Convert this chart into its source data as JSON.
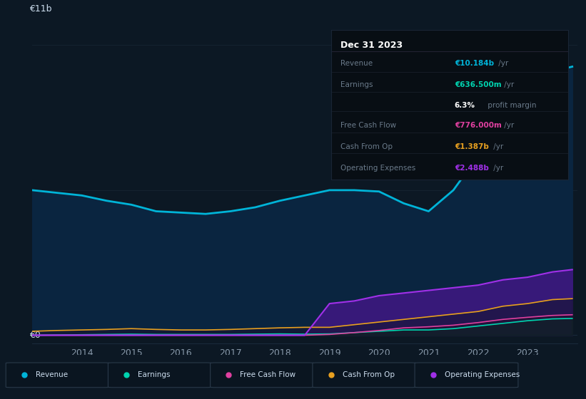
{
  "years": [
    2013.0,
    2013.5,
    2014.0,
    2014.5,
    2015.0,
    2015.5,
    2016.0,
    2016.5,
    2017.0,
    2017.5,
    2018.0,
    2018.5,
    2019.0,
    2019.5,
    2020.0,
    2020.5,
    2021.0,
    2021.5,
    2022.0,
    2022.5,
    2023.0,
    2023.5,
    2023.9
  ],
  "revenue": [
    5.5,
    5.4,
    5.3,
    5.1,
    4.95,
    4.7,
    4.65,
    4.6,
    4.7,
    4.85,
    5.1,
    5.3,
    5.5,
    5.5,
    5.45,
    5.0,
    4.7,
    5.5,
    6.8,
    8.2,
    9.5,
    10.0,
    10.184
  ],
  "earnings": [
    0.0,
    0.01,
    0.02,
    0.03,
    0.04,
    0.03,
    0.03,
    0.03,
    0.03,
    0.04,
    0.05,
    0.04,
    0.05,
    0.1,
    0.15,
    0.2,
    0.2,
    0.25,
    0.35,
    0.45,
    0.55,
    0.62,
    0.6365
  ],
  "free_cash_flow": [
    0.0,
    0.0,
    0.0,
    0.0,
    0.0,
    0.0,
    0.0,
    0.0,
    0.0,
    0.0,
    0.0,
    0.0,
    0.03,
    0.1,
    0.18,
    0.28,
    0.32,
    0.38,
    0.48,
    0.6,
    0.68,
    0.75,
    0.776
  ],
  "cash_from_op": [
    0.15,
    0.18,
    0.2,
    0.22,
    0.25,
    0.22,
    0.2,
    0.2,
    0.22,
    0.25,
    0.28,
    0.3,
    0.3,
    0.4,
    0.5,
    0.6,
    0.7,
    0.8,
    0.9,
    1.1,
    1.2,
    1.35,
    1.387
  ],
  "op_expenses": [
    0.0,
    0.0,
    0.0,
    0.0,
    0.0,
    0.0,
    0.0,
    0.0,
    0.0,
    0.0,
    0.0,
    0.0,
    1.2,
    1.3,
    1.5,
    1.6,
    1.7,
    1.8,
    1.9,
    2.1,
    2.2,
    2.4,
    2.488
  ],
  "bg_color": "#0c1824",
  "plot_bg_color": "#0c1824",
  "revenue_color": "#00b4d8",
  "revenue_fill": "#0a2540",
  "earnings_color": "#00d4b0",
  "free_cash_flow_color": "#e040a0",
  "cash_from_op_color": "#e8a020",
  "op_expenses_color": "#a030e8",
  "op_expenses_fill": "#3d1880",
  "grid_color": "#1a2a3a",
  "text_color": "#8899aa",
  "label_color": "#ccddee",
  "infobox_bg": "#080e14",
  "infobox_border": "#1a2535",
  "ylabel_text": "€11b",
  "y0_text": "€0",
  "info_title": "Dec 31 2023",
  "info_revenue_label": "Revenue",
  "info_revenue_value": "€10.184b",
  "info_earnings_label": "Earnings",
  "info_earnings_value": "€636.500m",
  "info_margin_value": "6.3%",
  "info_margin_suffix": " profit margin",
  "info_fcf_label": "Free Cash Flow",
  "info_fcf_value": "€776.000m",
  "info_cop_label": "Cash From Op",
  "info_cop_value": "€1.387b",
  "info_opex_label": "Operating Expenses",
  "info_opex_value": "€2.488b",
  "suffix": " /yr",
  "legend_items": [
    "Revenue",
    "Earnings",
    "Free Cash Flow",
    "Cash From Op",
    "Operating Expenses"
  ],
  "legend_colors": [
    "#00b4d8",
    "#00d4b0",
    "#e040a0",
    "#e8a020",
    "#a030e8"
  ],
  "xlim": [
    2013.0,
    2024.0
  ],
  "ylim": [
    -0.3,
    11.5
  ],
  "xticks": [
    2014,
    2015,
    2016,
    2017,
    2018,
    2019,
    2020,
    2021,
    2022,
    2023
  ]
}
